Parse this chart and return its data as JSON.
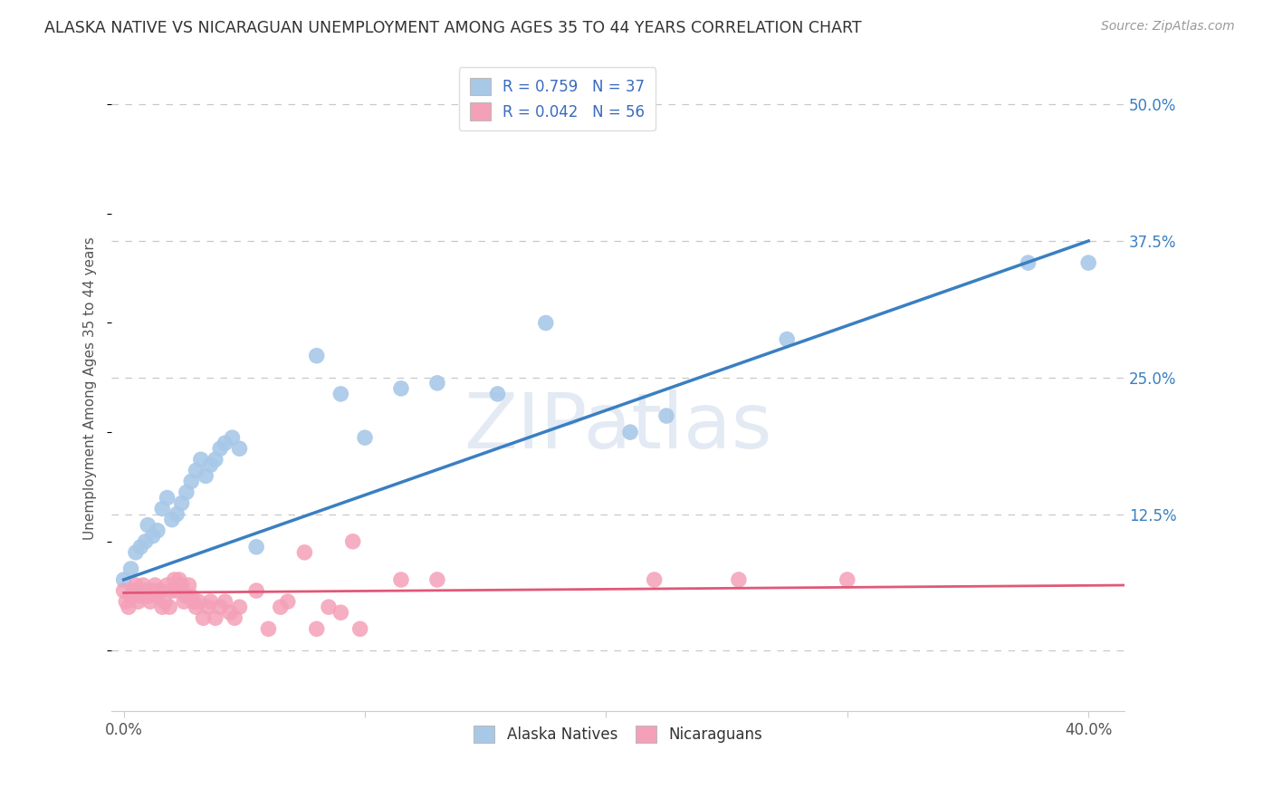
{
  "title": "ALASKA NATIVE VS NICARAGUAN UNEMPLOYMENT AMONG AGES 35 TO 44 YEARS CORRELATION CHART",
  "source": "Source: ZipAtlas.com",
  "xlabel_ticks": [
    "0.0%",
    "",
    "",
    "",
    "40.0%"
  ],
  "xlabel_tick_vals": [
    0.0,
    0.1,
    0.2,
    0.3,
    0.4
  ],
  "ylabel_ticks": [
    "50.0%",
    "37.5%",
    "25.0%",
    "12.5%",
    ""
  ],
  "ylabel_tick_vals": [
    0.5,
    0.375,
    0.25,
    0.125,
    0.0
  ],
  "ylabel": "Unemployment Among Ages 35 to 44 years",
  "xlim": [
    -0.005,
    0.415
  ],
  "ylim": [
    -0.055,
    0.535
  ],
  "alaska_R": 0.759,
  "alaska_N": 37,
  "nicaragua_R": 0.042,
  "nicaragua_N": 56,
  "alaska_color": "#a8c8e8",
  "nicaragua_color": "#f4a0b8",
  "alaska_line_color": "#3a7fc1",
  "nicaragua_line_color": "#e05878",
  "legend_text_color": "#3a6abf",
  "watermark": "ZIPatlas",
  "alaska_scatter": [
    [
      0.0,
      0.065
    ],
    [
      0.003,
      0.075
    ],
    [
      0.005,
      0.09
    ],
    [
      0.007,
      0.095
    ],
    [
      0.009,
      0.1
    ],
    [
      0.01,
      0.115
    ],
    [
      0.012,
      0.105
    ],
    [
      0.014,
      0.11
    ],
    [
      0.016,
      0.13
    ],
    [
      0.018,
      0.14
    ],
    [
      0.02,
      0.12
    ],
    [
      0.022,
      0.125
    ],
    [
      0.024,
      0.135
    ],
    [
      0.026,
      0.145
    ],
    [
      0.028,
      0.155
    ],
    [
      0.03,
      0.165
    ],
    [
      0.032,
      0.175
    ],
    [
      0.034,
      0.16
    ],
    [
      0.036,
      0.17
    ],
    [
      0.038,
      0.175
    ],
    [
      0.04,
      0.185
    ],
    [
      0.042,
      0.19
    ],
    [
      0.045,
      0.195
    ],
    [
      0.048,
      0.185
    ],
    [
      0.055,
      0.095
    ],
    [
      0.08,
      0.27
    ],
    [
      0.09,
      0.235
    ],
    [
      0.1,
      0.195
    ],
    [
      0.115,
      0.24
    ],
    [
      0.13,
      0.245
    ],
    [
      0.155,
      0.235
    ],
    [
      0.175,
      0.3
    ],
    [
      0.21,
      0.2
    ],
    [
      0.225,
      0.215
    ],
    [
      0.275,
      0.285
    ],
    [
      0.375,
      0.355
    ],
    [
      0.4,
      0.355
    ]
  ],
  "nicaragua_scatter": [
    [
      0.0,
      0.055
    ],
    [
      0.001,
      0.045
    ],
    [
      0.002,
      0.04
    ],
    [
      0.003,
      0.05
    ],
    [
      0.004,
      0.055
    ],
    [
      0.005,
      0.06
    ],
    [
      0.006,
      0.045
    ],
    [
      0.007,
      0.05
    ],
    [
      0.008,
      0.06
    ],
    [
      0.009,
      0.055
    ],
    [
      0.01,
      0.05
    ],
    [
      0.011,
      0.045
    ],
    [
      0.012,
      0.055
    ],
    [
      0.013,
      0.06
    ],
    [
      0.014,
      0.05
    ],
    [
      0.015,
      0.055
    ],
    [
      0.016,
      0.04
    ],
    [
      0.017,
      0.045
    ],
    [
      0.018,
      0.06
    ],
    [
      0.019,
      0.04
    ],
    [
      0.02,
      0.055
    ],
    [
      0.021,
      0.065
    ],
    [
      0.022,
      0.055
    ],
    [
      0.023,
      0.065
    ],
    [
      0.024,
      0.06
    ],
    [
      0.025,
      0.045
    ],
    [
      0.026,
      0.05
    ],
    [
      0.027,
      0.06
    ],
    [
      0.028,
      0.05
    ],
    [
      0.029,
      0.045
    ],
    [
      0.03,
      0.04
    ],
    [
      0.031,
      0.045
    ],
    [
      0.033,
      0.03
    ],
    [
      0.035,
      0.04
    ],
    [
      0.036,
      0.045
    ],
    [
      0.038,
      0.03
    ],
    [
      0.04,
      0.04
    ],
    [
      0.042,
      0.045
    ],
    [
      0.044,
      0.035
    ],
    [
      0.046,
      0.03
    ],
    [
      0.048,
      0.04
    ],
    [
      0.055,
      0.055
    ],
    [
      0.06,
      0.02
    ],
    [
      0.065,
      0.04
    ],
    [
      0.068,
      0.045
    ],
    [
      0.075,
      0.09
    ],
    [
      0.08,
      0.02
    ],
    [
      0.085,
      0.04
    ],
    [
      0.09,
      0.035
    ],
    [
      0.095,
      0.1
    ],
    [
      0.098,
      0.02
    ],
    [
      0.115,
      0.065
    ],
    [
      0.13,
      0.065
    ],
    [
      0.22,
      0.065
    ],
    [
      0.255,
      0.065
    ],
    [
      0.3,
      0.065
    ]
  ],
  "alaska_trendline": [
    [
      0.0,
      0.065
    ],
    [
      0.4,
      0.375
    ]
  ],
  "nicaragua_trendline": [
    [
      0.0,
      0.053
    ],
    [
      0.415,
      0.06
    ]
  ]
}
